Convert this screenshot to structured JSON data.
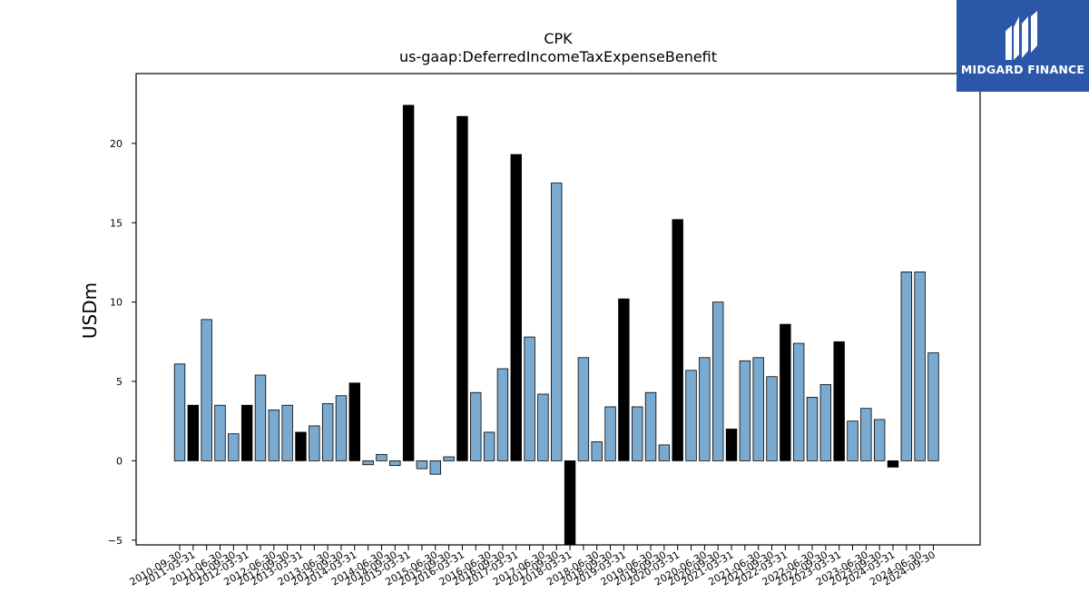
{
  "chart_data": {
    "type": "bar",
    "title": "CPK",
    "subtitle": "us-gaap:DeferredIncomeTaxExpenseBenefit",
    "xlabel": "",
    "ylabel": "USDm",
    "ylim": [
      -5.3,
      24.4
    ],
    "yticks": [
      -5,
      0,
      5,
      10,
      15,
      20
    ],
    "grid": false,
    "colors": {
      "quarter": "#7aaad0",
      "annual": "#000000",
      "edge": "#000000"
    },
    "x": [
      "2010-09-30",
      "2010-12-31",
      "2011-03-31",
      "2011-06-30",
      "2011-09-30",
      "2011-12-31",
      "2012-03-31",
      "2012-06-30",
      "2012-09-30",
      "2012-12-31",
      "2013-03-31",
      "2013-06-30",
      "2013-09-30",
      "2013-12-31",
      "2014-03-31",
      "2014-06-30",
      "2014-09-30",
      "2014-12-31",
      "2015-03-31",
      "2015-06-30",
      "2015-09-30",
      "2015-12-31",
      "2016-03-31",
      "2016-06-30",
      "2016-09-30",
      "2016-12-31",
      "2017-03-31",
      "2017-06-30",
      "2017-09-30",
      "2017-12-31",
      "2018-03-31",
      "2018-06-30",
      "2018-09-30",
      "2018-12-31",
      "2019-03-31",
      "2019-06-30",
      "2019-09-30",
      "2019-12-31",
      "2020-03-31",
      "2020-06-30",
      "2020-09-30",
      "2020-12-31",
      "2021-03-31",
      "2021-06-30",
      "2021-09-30",
      "2021-12-31",
      "2022-03-31",
      "2022-06-30",
      "2022-09-30",
      "2022-12-31",
      "2023-03-31",
      "2023-06-30",
      "2023-09-30",
      "2023-12-31",
      "2024-03-31",
      "2024-06-30",
      "2024-09-30"
    ],
    "tick_labels": [
      "2010-09-30",
      "2011-03-31",
      "2011-06-30",
      "2011-09-30",
      "2012-03-31",
      "2012-06-30",
      "2012-09-30",
      "2013-03-31",
      "2013-06-30",
      "2013-09-30",
      "2014-03-31",
      "2014-06-30",
      "2014-09-30",
      "2015-03-31",
      "2015-06-30",
      "2015-09-30",
      "2016-03-31",
      "2016-06-30",
      "2016-09-30",
      "2017-03-31",
      "2017-06-30",
      "2017-09-30",
      "2018-03-31",
      "2018-06-30",
      "2018-09-30",
      "2019-03-31",
      "2019-06-30",
      "2019-09-30",
      "2020-03-31",
      "2020-06-30",
      "2020-09-30",
      "2021-03-31",
      "2021-06-30",
      "2021-09-30",
      "2022-03-31",
      "2022-06-30",
      "2022-09-30",
      "2023-03-31",
      "2023-06-30",
      "2023-09-30",
      "2024-03-31",
      "2024-06-30",
      "2024-09-30"
    ],
    "values": [
      6.1,
      3.5,
      8.9,
      3.5,
      1.7,
      3.5,
      5.4,
      3.2,
      3.5,
      1.8,
      2.2,
      3.6,
      4.1,
      4.9,
      -0.25,
      0.4,
      -0.3,
      22.4,
      -0.5,
      -0.85,
      0.25,
      21.7,
      4.3,
      1.8,
      5.8,
      19.3,
      7.8,
      4.2,
      17.5,
      -5.4,
      6.5,
      1.2,
      3.4,
      10.2,
      3.4,
      4.3,
      1.0,
      15.2,
      5.7,
      6.5,
      10.0,
      2.0,
      6.3,
      6.5,
      5.3,
      8.6,
      7.4,
      4.0,
      4.8,
      7.5,
      2.5,
      3.3,
      2.6,
      -0.4,
      11.9,
      11.9,
      6.8
    ],
    "annual": [
      false,
      true,
      false,
      false,
      false,
      true,
      false,
      false,
      false,
      true,
      false,
      false,
      false,
      true,
      false,
      false,
      false,
      true,
      false,
      false,
      false,
      true,
      false,
      false,
      false,
      true,
      false,
      false,
      false,
      true,
      false,
      false,
      false,
      true,
      false,
      false,
      false,
      true,
      false,
      false,
      false,
      true,
      false,
      false,
      false,
      true,
      false,
      false,
      false,
      true,
      false,
      false,
      false,
      true,
      false,
      false,
      false
    ]
  },
  "logo": {
    "text": "MIDGARD FINANCE",
    "colors": {
      "background": "#2b57a8",
      "foreground": "#ffffff"
    }
  }
}
